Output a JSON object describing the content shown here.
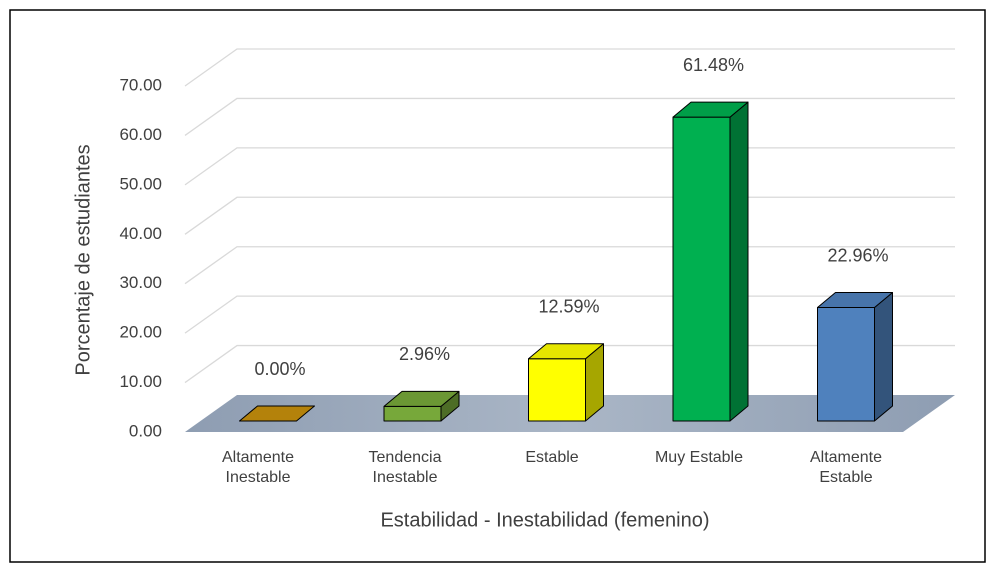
{
  "chart_data": {
    "type": "bar3d",
    "x_label": "Estabilidad - Inestabilidad  (femenino)",
    "y_label": "Porcentaje de estudiantes",
    "categories": [
      "Altamente Inestable",
      "Tendencia Inestable",
      "Estable",
      "Muy Estable",
      "Altamente Estable"
    ],
    "values": [
      0.0,
      2.96,
      12.59,
      61.48,
      22.96
    ],
    "value_labels": [
      "0.00%",
      "2.96%",
      "12.59%",
      "61.48%",
      "22.96%"
    ],
    "colors": [
      "#c8900c",
      "#77a83a",
      "#ffff00",
      "#00b050",
      "#4f81bd"
    ],
    "ylim": [
      0,
      70
    ],
    "yticks": [
      {
        "value": 0,
        "label": "0.00"
      },
      {
        "value": 10,
        "label": "10.00"
      },
      {
        "value": 20,
        "label": "20.00"
      },
      {
        "value": 30,
        "label": "30.00"
      },
      {
        "value": 40,
        "label": "40.00"
      },
      {
        "value": 50,
        "label": "50.00"
      },
      {
        "value": 60,
        "label": "60.00"
      },
      {
        "value": 70,
        "label": "70.00"
      }
    ],
    "grid": true
  }
}
